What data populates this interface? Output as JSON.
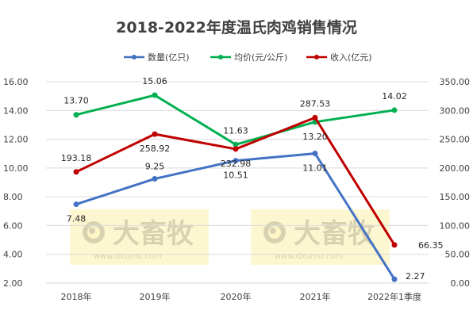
{
  "chart_data": {
    "type": "line",
    "title": "2018-2022年度温氏肉鸡销售情况",
    "categories": [
      "2018年",
      "2019年",
      "2020年",
      "2021年",
      "2022年1季度"
    ],
    "y_left": {
      "ylim": [
        2,
        16
      ],
      "ticks": [
        "2.00",
        "4.00",
        "6.00",
        "8.00",
        "10.00",
        "12.00",
        "14.00",
        "16.00"
      ]
    },
    "y_right": {
      "ylim": [
        0,
        350
      ],
      "ticks": [
        "0.00",
        "50.00",
        "100.00",
        "150.00",
        "200.00",
        "250.00",
        "300.00",
        "350.00"
      ]
    },
    "legend_position": "top",
    "series": [
      {
        "name": "数量(亿只)",
        "axis": "left",
        "color": "#4472C4",
        "values": [
          7.48,
          9.25,
          10.51,
          11.01,
          2.27
        ],
        "labels": [
          "7.48",
          "9.25",
          "10.51",
          "11.01",
          "2.27"
        ]
      },
      {
        "name": "均价(元/公斤)",
        "axis": "left",
        "color": "#00B050",
        "values": [
          13.7,
          15.06,
          11.63,
          13.2,
          14.02
        ],
        "labels": [
          "13.70",
          "15.06",
          "11.63",
          "13.20",
          "14.02"
        ]
      },
      {
        "name": "收入(亿元)",
        "axis": "right",
        "color": "#C00000",
        "values": [
          193.18,
          258.92,
          232.98,
          287.53,
          66.35
        ],
        "labels": [
          "193.18",
          "258.92",
          "232.98",
          "287.53",
          "66.35"
        ]
      }
    ]
  },
  "watermark": {
    "brand": "大畜牧",
    "url": "www.dxumu.com"
  }
}
